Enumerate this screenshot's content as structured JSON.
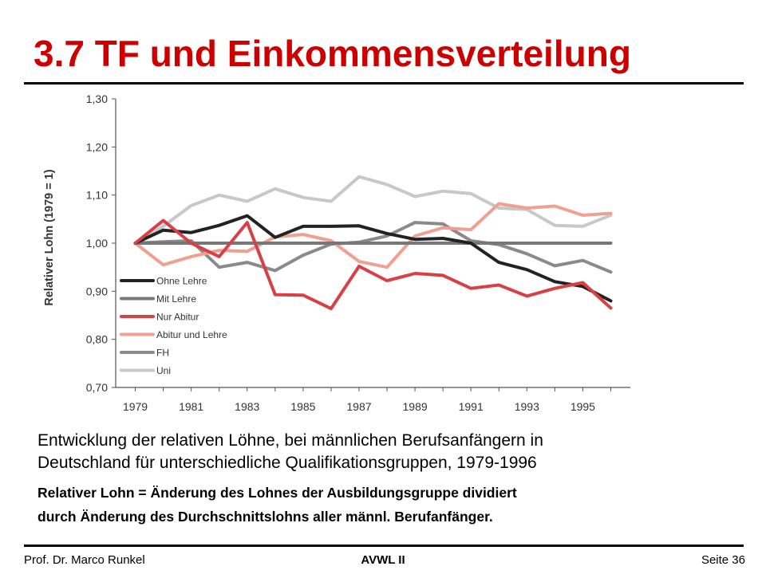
{
  "slide": {
    "title": "3.7 TF und Einkommensverteilung",
    "caption_lines": [
      "Entwicklung der relativen Löhne, bei männlichen Berufsanfängern in",
      "Deutschland für unterschiedliche Qualifikationsgruppen, 1979-1996"
    ],
    "definition_lines": [
      "Relativer Lohn = Änderung des Lohnes der Ausbildungsgruppe dividiert",
      "durch Änderung des Durchschnittslohns aller männl. Berufanfänger."
    ],
    "title_color": "#cc0000"
  },
  "footer": {
    "author": "Prof. Dr. Marco Runkel",
    "course": "AVWL II",
    "page": "Seite 36"
  },
  "chart_data": {
    "type": "line",
    "title": "",
    "xlabel": "",
    "ylabel": "Relativer Lohn (1979 = 1)",
    "x": [
      1979,
      1980,
      1981,
      1982,
      1983,
      1984,
      1985,
      1986,
      1987,
      1988,
      1989,
      1990,
      1991,
      1992,
      1993,
      1994,
      1995,
      1996
    ],
    "xticks": [
      "1979",
      "1981",
      "1983",
      "1985",
      "1987",
      "1989",
      "1991",
      "1993",
      "1995"
    ],
    "yticks": [
      "0,70",
      "0,80",
      "0,90",
      "1,00",
      "1,10",
      "1,20",
      "1,30"
    ],
    "ylim": [
      0.7,
      1.3
    ],
    "grid": false,
    "legend_position": "bottom-left",
    "series": [
      {
        "name": "Ohne Lehre",
        "color": "#222222",
        "values": [
          1.0,
          1.027,
          1.022,
          1.037,
          1.057,
          1.012,
          1.035,
          1.035,
          1.036,
          1.02,
          1.008,
          1.01,
          1.0,
          0.96,
          0.945,
          0.92,
          0.91,
          0.88
        ]
      },
      {
        "name": "Mit Lehre",
        "color": "#777777",
        "values": [
          1.0,
          1.0,
          1.0,
          1.0,
          1.0,
          1.0,
          1.0,
          1.0,
          1.0,
          1.0,
          1.0,
          1.0,
          1.0,
          1.0,
          1.0,
          1.0,
          1.0,
          1.0
        ]
      },
      {
        "name": "Nur Abitur",
        "color": "#d94045",
        "values": [
          1.0,
          1.047,
          1.0,
          0.972,
          1.043,
          0.893,
          0.892,
          0.864,
          0.952,
          0.922,
          0.937,
          0.933,
          0.906,
          0.913,
          0.89,
          0.906,
          0.918,
          0.865
        ]
      },
      {
        "name": "Abitur und Lehre",
        "color": "#f0a090",
        "values": [
          1.0,
          0.955,
          0.972,
          0.985,
          0.983,
          1.013,
          1.018,
          1.005,
          0.962,
          0.95,
          1.015,
          1.032,
          1.028,
          1.082,
          1.073,
          1.077,
          1.058,
          1.062
        ]
      },
      {
        "name": "FH",
        "color": "#8a8a8a",
        "values": [
          1.0,
          1.003,
          1.005,
          0.95,
          0.96,
          0.943,
          0.975,
          0.998,
          1.002,
          1.015,
          1.043,
          1.04,
          1.005,
          0.997,
          0.978,
          0.953,
          0.964,
          0.94
        ]
      },
      {
        "name": "Uni",
        "color": "#c8c8c8",
        "values": [
          1.0,
          1.035,
          1.078,
          1.1,
          1.087,
          1.113,
          1.095,
          1.087,
          1.138,
          1.122,
          1.097,
          1.108,
          1.103,
          1.073,
          1.07,
          1.037,
          1.035,
          1.058
        ]
      }
    ]
  }
}
